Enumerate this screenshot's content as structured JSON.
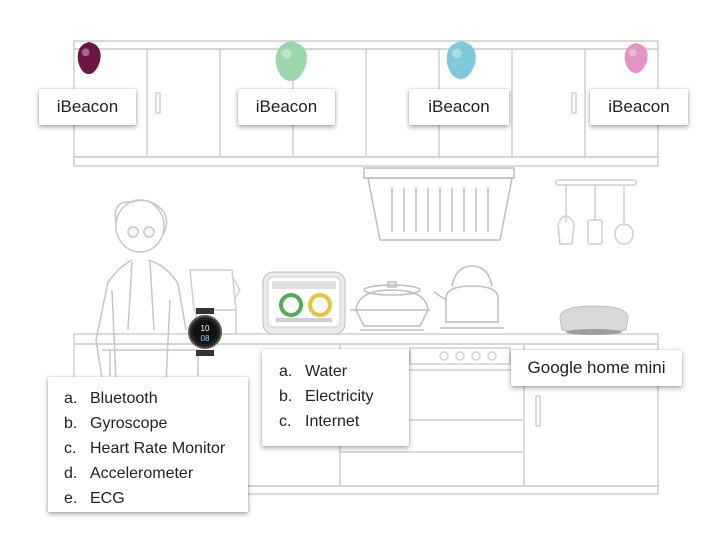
{
  "beacons": [
    {
      "label": "iBeacon",
      "color": "#6b1640"
    },
    {
      "label": "iBeacon",
      "color": "#9bd6ad"
    },
    {
      "label": "iBeacon",
      "color": "#7fc9dc"
    },
    {
      "label": "iBeacon",
      "color": "#e294c3"
    }
  ],
  "watch": {
    "features": [
      {
        "letter": "a.",
        "text": "Bluetooth"
      },
      {
        "letter": "b.",
        "text": "Gyroscope"
      },
      {
        "letter": "c.",
        "text": "Heart Rate Monitor"
      },
      {
        "letter": "d.",
        "text": "Accelerometer"
      },
      {
        "letter": "e.",
        "text": "ECG"
      }
    ],
    "face_time_top": "10",
    "face_time_bottom": "08"
  },
  "smart_meter": {
    "features": [
      {
        "letter": "a.",
        "text": "Water"
      },
      {
        "letter": "b.",
        "text": "Electricity"
      },
      {
        "letter": "c.",
        "text": "Internet"
      }
    ]
  },
  "google_home": {
    "label": "Google home mini"
  },
  "colors": {
    "line": "#cfcfcf",
    "line_dark": "#bdbdbd",
    "gauge_green": "#4caf50",
    "gauge_yellow": "#e9c43a"
  }
}
